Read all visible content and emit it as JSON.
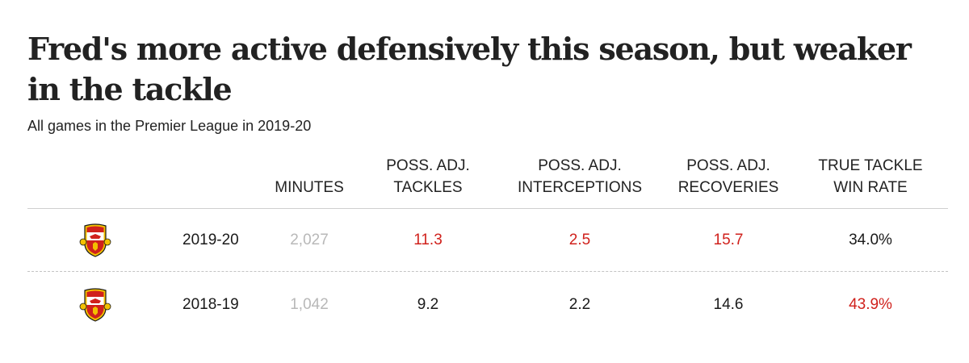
{
  "title": "Fred's more active defensively this season, but weaker in the tackle",
  "subtitle": "All games in the Premier League in 2019-20",
  "chart_data": {
    "type": "table",
    "columns": [
      {
        "line1": "",
        "line2": "MINUTES"
      },
      {
        "line1": "POSS. ADJ.",
        "line2": "TACKLES"
      },
      {
        "line1": "POSS. ADJ.",
        "line2": "INTERCEPTIONS"
      },
      {
        "line1": "POSS. ADJ.",
        "line2": "RECOVERIES"
      },
      {
        "line1": "TRUE TACKLE",
        "line2": "WIN RATE"
      }
    ],
    "rows": [
      {
        "crest": "manchester-united-crest",
        "season": "2019-20",
        "values": [
          "2,027",
          "11.3",
          "2.5",
          "15.7",
          "34.0%"
        ],
        "highlight": [
          "muted",
          "red",
          "red",
          "red",
          "dark"
        ]
      },
      {
        "crest": "manchester-united-crest",
        "season": "2018-19",
        "values": [
          "1,042",
          "9.2",
          "2.2",
          "14.6",
          "43.9%"
        ],
        "highlight": [
          "muted",
          "dark",
          "dark",
          "dark",
          "red"
        ]
      }
    ]
  },
  "colors": {
    "highlight": "#d0211c",
    "muted": "#b8b8b8",
    "text": "#1a1a1a"
  }
}
